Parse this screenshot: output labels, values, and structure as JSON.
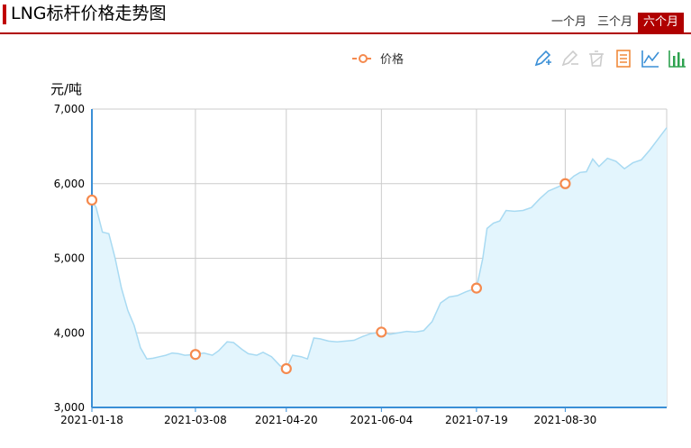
{
  "header": {
    "title": "LNG标杆价格走势图",
    "tabs": [
      {
        "label": "一个月",
        "active": false
      },
      {
        "label": "三个月",
        "active": false
      },
      {
        "label": "六个月",
        "active": true
      }
    ]
  },
  "toolbox": {
    "icons": [
      "mark-pen-icon",
      "erase-pen-icon",
      "clear-mark-icon",
      "data-view-icon",
      "line-chart-icon",
      "bar-chart-icon"
    ]
  },
  "colors": {
    "accent": "#b00000",
    "series_line": "#a8daf2",
    "area_fill": "#e3f5fd",
    "marker": "#f58a4e",
    "axis": "#3a8fd6",
    "grid": "#cccccc"
  },
  "chart_data": {
    "type": "area",
    "title": "",
    "ylabel": "元/吨",
    "ylim": [
      3000,
      7000
    ],
    "yticks": [
      "3,000",
      "4,000",
      "5,000",
      "6,000",
      "7,000"
    ],
    "xticks": [
      "2021-01-18",
      "2021-03-08",
      "2021-04-20",
      "2021-06-04",
      "2021-07-19",
      "2021-08-30"
    ],
    "grid": true,
    "legend_position": "top",
    "series": [
      {
        "name": "价格",
        "x": [
          "2021-01-18",
          "2021-01-20",
          "2021-01-23",
          "2021-01-26",
          "2021-01-29",
          "2021-02-01",
          "2021-02-04",
          "2021-02-07",
          "2021-02-10",
          "2021-02-13",
          "2021-02-16",
          "2021-02-19",
          "2021-02-22",
          "2021-02-25",
          "2021-02-28",
          "2021-03-03",
          "2021-03-08",
          "2021-03-12",
          "2021-03-16",
          "2021-03-19",
          "2021-03-23",
          "2021-03-26",
          "2021-03-30",
          "2021-04-02",
          "2021-04-06",
          "2021-04-09",
          "2021-04-13",
          "2021-04-17",
          "2021-04-20",
          "2021-04-23",
          "2021-04-27",
          "2021-04-30",
          "2021-05-03",
          "2021-05-06",
          "2021-05-10",
          "2021-05-14",
          "2021-05-18",
          "2021-05-22",
          "2021-05-26",
          "2021-05-30",
          "2021-06-04",
          "2021-06-08",
          "2021-06-12",
          "2021-06-16",
          "2021-06-20",
          "2021-06-24",
          "2021-06-28",
          "2021-07-02",
          "2021-07-06",
          "2021-07-10",
          "2021-07-14",
          "2021-07-19",
          "2021-07-22",
          "2021-07-24",
          "2021-07-27",
          "2021-07-30",
          "2021-08-02",
          "2021-08-06",
          "2021-08-10",
          "2021-08-14",
          "2021-08-18",
          "2021-08-22",
          "2021-08-26",
          "2021-08-30",
          "2021-09-03",
          "2021-09-06",
          "2021-09-09",
          "2021-09-12",
          "2021-09-15",
          "2021-09-19",
          "2021-09-23",
          "2021-09-27",
          "2021-10-01",
          "2021-10-05",
          "2021-10-09",
          "2021-10-13",
          "2021-10-17"
        ],
        "values": [
          5780,
          5680,
          5350,
          5330,
          5000,
          4600,
          4300,
          4100,
          3800,
          3650,
          3660,
          3680,
          3700,
          3730,
          3720,
          3700,
          3710,
          3730,
          3700,
          3760,
          3880,
          3870,
          3780,
          3720,
          3700,
          3740,
          3680,
          3560,
          3520,
          3700,
          3680,
          3650,
          3930,
          3920,
          3890,
          3880,
          3890,
          3900,
          3950,
          3990,
          4010,
          3980,
          4000,
          4020,
          4010,
          4030,
          4150,
          4400,
          4480,
          4500,
          4550,
          4600,
          5000,
          5400,
          5470,
          5500,
          5640,
          5630,
          5640,
          5680,
          5800,
          5900,
          5950,
          6000,
          6100,
          6150,
          6160,
          6330,
          6230,
          6340,
          6300,
          6200,
          6280,
          6320,
          6450,
          6600,
          6750
        ]
      }
    ],
    "markers": [
      {
        "x": "2021-01-18",
        "y": 5780
      },
      {
        "x": "2021-03-08",
        "y": 3710
      },
      {
        "x": "2021-04-20",
        "y": 3520
      },
      {
        "x": "2021-06-04",
        "y": 4010
      },
      {
        "x": "2021-07-19",
        "y": 4600
      },
      {
        "x": "2021-08-30",
        "y": 6000
      }
    ]
  }
}
